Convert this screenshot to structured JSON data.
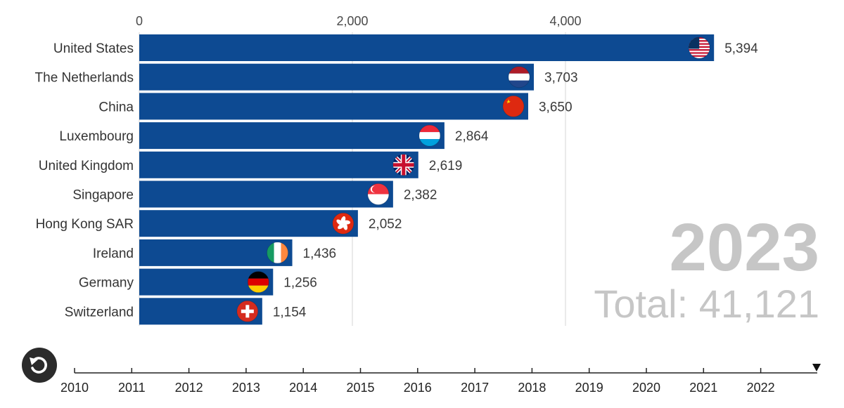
{
  "chart_data": {
    "type": "bar",
    "orientation": "horizontal",
    "categories": [
      "United States",
      "The Netherlands",
      "China",
      "Luxembourg",
      "United Kingdom",
      "Singapore",
      "Hong Kong SAR",
      "Ireland",
      "Germany",
      "Switzerland"
    ],
    "values": [
      5394,
      3703,
      3650,
      2864,
      2619,
      2382,
      2052,
      1436,
      1256,
      1154
    ],
    "value_labels": [
      "5,394",
      "3,703",
      "3,650",
      "2,864",
      "2,619",
      "2,382",
      "2,052",
      "1,436",
      "1,256",
      "1,154"
    ],
    "flags": [
      "us-flag-icon",
      "nl-flag-icon",
      "cn-flag-icon",
      "lu-flag-icon",
      "gb-flag-icon",
      "sg-flag-icon",
      "hk-flag-icon",
      "ie-flag-icon",
      "de-flag-icon",
      "ch-flag-icon"
    ],
    "xlim": [
      0,
      5500
    ],
    "xticks": [
      0,
      2000,
      4000
    ],
    "xtick_labels": [
      "0",
      "2,000",
      "4,000"
    ],
    "grid": true,
    "bar_color": "#0d4a92",
    "year": "2023",
    "total_label": "Total: 41,121"
  },
  "timeline": {
    "years": [
      "2010",
      "2011",
      "2012",
      "2013",
      "2014",
      "2015",
      "2016",
      "2017",
      "2018",
      "2019",
      "2020",
      "2021",
      "2022"
    ],
    "current": "2023",
    "replay_icon": "replay-icon"
  },
  "colors": {
    "bar": "#0d4a92",
    "grid": "#d4d4d4",
    "year_text": "#c6c6c6",
    "replay_button": "#2b2b2b"
  }
}
